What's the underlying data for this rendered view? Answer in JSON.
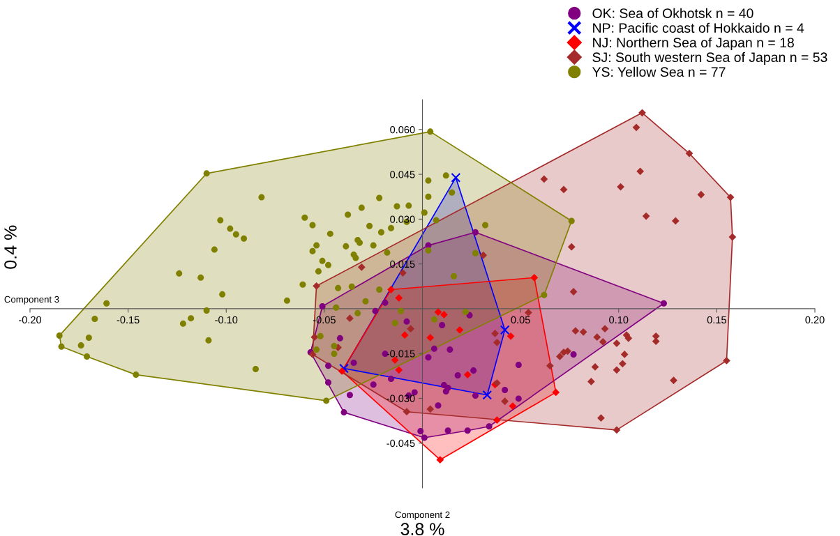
{
  "chart_data": {
    "type": "scatter",
    "xlabel": "Component 2",
    "ylabel": "Component 3",
    "annotations": [
      "3.8 %",
      "0.4 %"
    ],
    "xlim": [
      -0.2,
      0.2
    ],
    "ylim": [
      -0.06,
      0.07
    ],
    "xticks": [
      {
        "value": -0.2,
        "label": "-0.20"
      },
      {
        "value": -0.15,
        "label": "-0.15"
      },
      {
        "value": -0.1,
        "label": "-0.10"
      },
      {
        "value": -0.05,
        "label": "-0.05"
      },
      {
        "value": 0.05,
        "label": "0.05"
      },
      {
        "value": 0.1,
        "label": "0.10"
      },
      {
        "value": 0.15,
        "label": "0.15"
      },
      {
        "value": 0.2,
        "label": "0.20"
      }
    ],
    "yticks": [
      {
        "value": -0.045,
        "label": "-0.045"
      },
      {
        "value": -0.03,
        "label": "-0.030"
      },
      {
        "value": -0.015,
        "label": "-0.015"
      },
      {
        "value": 0.015,
        "label": "0.015"
      },
      {
        "value": 0.03,
        "label": "0.030"
      },
      {
        "value": 0.045,
        "label": "0.045"
      },
      {
        "value": 0.06,
        "label": "0.060"
      }
    ],
    "grid": false,
    "legend": "top right",
    "series": [
      {
        "name": "OK: Sea of Okhotsk n = 40",
        "color": "#800080",
        "marker": "circle",
        "x": [
          -0.024,
          -0.051,
          -0.019,
          0.003,
          0.027,
          0.024,
          -0.008,
          0.01,
          -0.042,
          -0.057,
          -0.019,
          0.006,
          0.014,
          0.003,
          -0.035,
          -0.048,
          0.049,
          -0.048,
          -0.016,
          -0.025,
          0.018,
          0.026,
          0.011,
          0.013,
          0.012,
          -0.004,
          -0.007,
          -0.037,
          0.027,
          0.042,
          0.049,
          0.008,
          -0.04,
          -0.001,
          0.001,
          0.013,
          0.023,
          0.034,
          0.123,
          0.077
        ],
        "values": [
          -0.0008,
          0.0008,
          0.002,
          0.0212,
          0.0256,
          -0.0022,
          -0.0043,
          -0.0055,
          -0.0099,
          -0.0146,
          -0.0151,
          -0.0134,
          -0.0137,
          -0.0163,
          -0.0181,
          -0.0191,
          -0.0188,
          -0.0247,
          -0.0235,
          -0.0254,
          -0.0223,
          -0.0207,
          -0.0256,
          -0.0265,
          -0.0277,
          -0.028,
          -0.0291,
          -0.0289,
          -0.0291,
          -0.0272,
          -0.0301,
          -0.0324,
          -0.0347,
          -0.041,
          -0.0432,
          -0.0408,
          -0.0408,
          -0.0394,
          0.0018,
          -0.0153
        ]
      },
      {
        "name": "NP: Pacific coast of Hokkaido n = 4",
        "color": "#0000ff",
        "marker": "cross",
        "x": [
          0.017,
          0.042,
          0.033,
          -0.04
        ],
        "values": [
          0.0439,
          -0.0071,
          -0.0289,
          -0.02
        ]
      },
      {
        "name": "NJ: Northern Sea of Japan n = 18",
        "color": "#ff0000",
        "marker": "diamond",
        "x": [
          -0.016,
          -0.012,
          0.008,
          0.011,
          0.057,
          -0.009,
          0.004,
          0.019,
          0.045,
          -0.014,
          -0.012,
          0.023,
          -0.041,
          0.037,
          0.046,
          0.038,
          0.009,
          0.068
        ],
        "values": [
          0.0064,
          0.0036,
          -0.0011,
          -0.002,
          0.0104,
          -0.0088,
          -0.0097,
          -0.0071,
          -0.0092,
          -0.0172,
          -0.0205,
          -0.0221,
          -0.0209,
          -0.0254,
          -0.0326,
          -0.0373,
          -0.0506,
          -0.028
        ]
      },
      {
        "name": "SJ: South western Sea of Japan n = 53",
        "color": "#a52a2a",
        "marker": "diamond",
        "x": [
          -0.054,
          -0.031,
          -0.01,
          0.031,
          0.062,
          -0.037,
          0.054,
          -0.055,
          -0.043,
          -0.056,
          -0.006,
          0.037,
          0.038,
          0.038,
          0.042,
          -0.008,
          0.004,
          0.065,
          0.112,
          0.109,
          0.136,
          0.111,
          0.072,
          0.101,
          0.142,
          0.157,
          0.114,
          0.129,
          0.158,
          0.076,
          0.077,
          0.078,
          0.082,
          0.093,
          0.089,
          0.092,
          0.104,
          0.105,
          0.119,
          0.119,
          0.099,
          0.103,
          0.102,
          0.099,
          0.07,
          0.074,
          0.072,
          0.088,
          0.086,
          0.128,
          0.155,
          0.091,
          0.099
        ],
        "values": [
          0.0076,
          0.0139,
          0.012,
          0.0179,
          0.0434,
          -0.0032,
          -0.0013,
          -0.0095,
          -0.013,
          -0.0153,
          -0.0067,
          -0.0083,
          -0.0113,
          -0.0249,
          -0.031,
          -0.0345,
          -0.0336,
          -0.0191,
          0.0656,
          0.0607,
          0.052,
          0.046,
          0.0399,
          0.0408,
          0.0382,
          0.0373,
          0.031,
          0.0294,
          0.024,
          0.0207,
          0.0057,
          -0.0074,
          -0.0078,
          -0.0067,
          -0.0095,
          -0.0111,
          -0.0088,
          -0.0099,
          -0.0092,
          -0.0109,
          -0.0116,
          -0.0153,
          -0.0184,
          -0.0205,
          -0.016,
          -0.0142,
          -0.0146,
          -0.0195,
          -0.0244,
          -0.024,
          -0.0174,
          -0.0366,
          -0.0406
        ]
      },
      {
        "name": "YS: Yellow Sea n = 77",
        "color": "#808000",
        "marker": "circle",
        "x": [
          -0.11,
          -0.082,
          -0.06,
          -0.103,
          -0.098,
          -0.095,
          -0.091,
          -0.106,
          -0.124,
          -0.113,
          -0.061,
          -0.102,
          -0.069,
          -0.161,
          -0.11,
          -0.167,
          -0.118,
          -0.122,
          -0.185,
          -0.17,
          -0.174,
          -0.184,
          -0.171,
          -0.109,
          -0.085,
          -0.146,
          0.004,
          0.076,
          0.062,
          0.012,
          0.003,
          0.015,
          0.003,
          -0.022,
          -0.031,
          -0.013,
          -0.007,
          -0.038,
          0.001,
          -0.056,
          -0.008,
          0.007,
          -0.027,
          -0.021,
          -0.016,
          0.032,
          -0.047,
          -0.033,
          -0.032,
          -0.054,
          -0.039,
          -0.025,
          -0.056,
          0.003,
          -0.035,
          -0.034,
          -0.018,
          0.027,
          -0.051,
          -0.048,
          -0.053,
          0.016,
          -0.043,
          -0.036,
          -0.022,
          -0.029,
          -0.044,
          -0.033,
          -0.011,
          0.022,
          0.006,
          -0.014,
          -0.052,
          -0.054,
          -0.045,
          -0.045,
          -0.049
        ],
        "values": [
          0.0453,
          0.0373,
          0.0305,
          0.0296,
          0.0268,
          0.0249,
          0.0235,
          0.0198,
          0.0118,
          0.0104,
          0.0081,
          0.0048,
          0.0027,
          0.0018,
          -0.0006,
          -0.0034,
          -0.0032,
          -0.005,
          -0.009,
          -0.0097,
          -0.0123,
          -0.0127,
          -0.016,
          -0.0106,
          -0.0202,
          -0.0221,
          0.0593,
          0.0294,
          0.0046,
          0.0446,
          0.0429,
          0.0389,
          0.0375,
          0.0371,
          0.0338,
          0.0343,
          0.0345,
          0.0315,
          0.0322,
          0.028,
          0.0291,
          0.0296,
          0.0277,
          0.0256,
          0.027,
          0.028,
          0.0251,
          0.023,
          0.0221,
          0.0212,
          0.0209,
          0.0212,
          0.0193,
          0.0195,
          0.0181,
          0.017,
          0.0188,
          0.0186,
          0.016,
          0.0146,
          0.0125,
          0.0109,
          0.0069,
          0.0074,
          0.0064,
          0.0025,
          0.0004,
          -0.0015,
          -0.0008,
          -0.0011,
          -0.0036,
          -0.0048,
          -0.0092,
          -0.0137,
          -0.0125,
          -0.0151,
          -0.0308
        ]
      }
    ]
  }
}
